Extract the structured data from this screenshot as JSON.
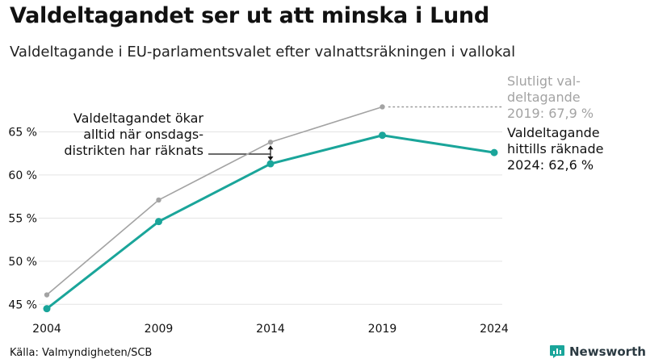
{
  "header": {
    "title": "Valdeltagandet ser ut att minska i Lund",
    "subtitle": "Valdeltagande i EU-parlamentsvalet efter valnattsräkningen i vallokal"
  },
  "chart_data": {
    "type": "line",
    "x": [
      "2004",
      "2009",
      "2014",
      "2019",
      "2024"
    ],
    "ylim": [
      44,
      70
    ],
    "yticks": [
      45,
      50,
      55,
      60,
      65
    ],
    "ytick_labels": [
      "45 %",
      "50 %",
      "55 %",
      "60 %",
      "65 %"
    ],
    "grid": true,
    "series": [
      {
        "name": "",
        "color": "#a3a3a3",
        "values": [
          46.1,
          57.1,
          63.8,
          67.9,
          null
        ]
      },
      {
        "name": "",
        "color": "#1aa59a",
        "values": [
          44.5,
          54.6,
          61.3,
          64.6,
          62.6
        ]
      }
    ],
    "annotations": {
      "final_turnout": [
        "Slutligt val-",
        "deltagande",
        "2019: 67,9 %"
      ],
      "counted_turnout": [
        "Valdeltagande",
        "hittills räknade",
        "2024: 62,6 %"
      ],
      "note": [
        "Valdeltagandet ökar",
        "alltid när onsdags-",
        "distrikten har räknats"
      ]
    }
  },
  "footer": {
    "source": "Källa: Valmyndigheten/SCB",
    "brand": "Newsworthy",
    "brand_color": "#1aa59a",
    "brand_icon": "bar-chart-icon"
  }
}
